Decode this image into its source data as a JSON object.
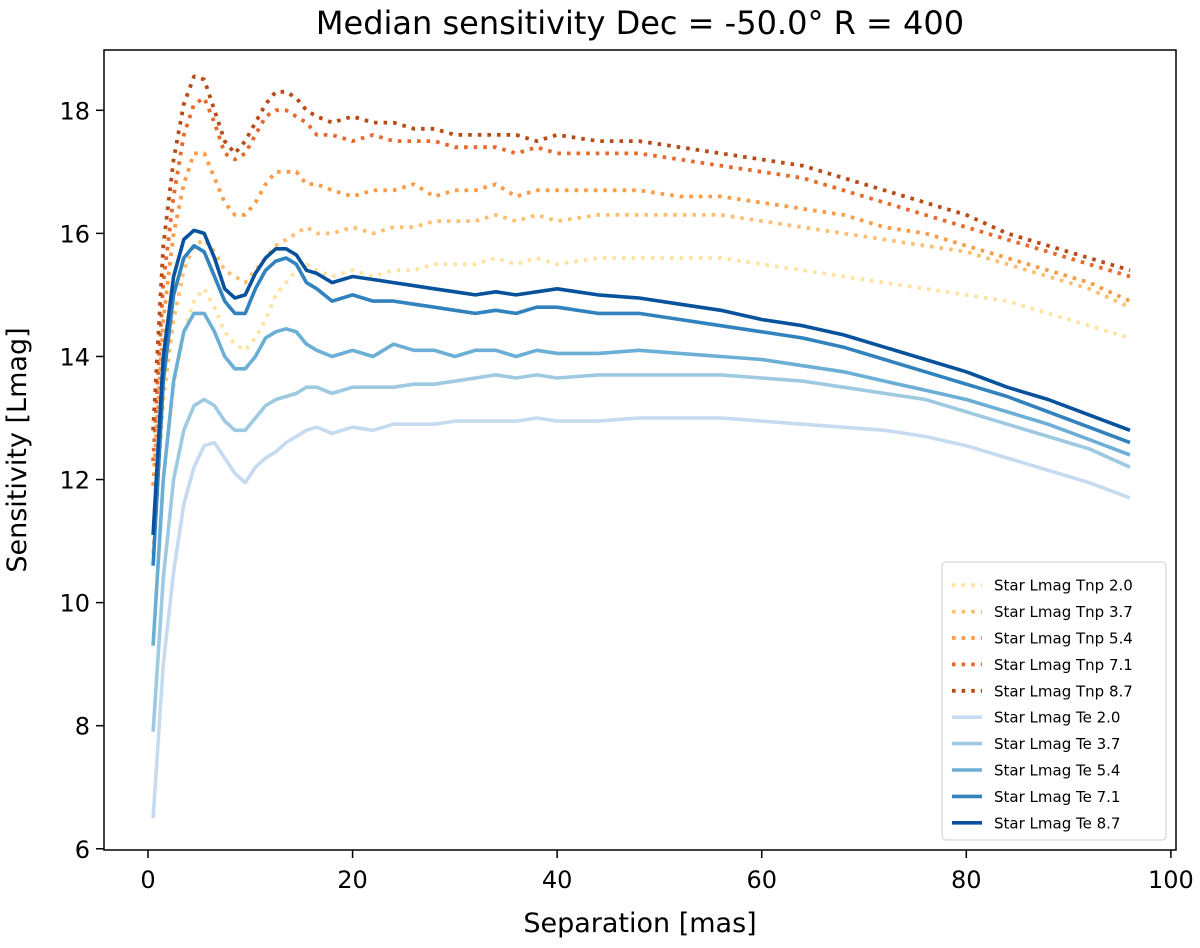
{
  "chart_data": {
    "type": "line",
    "title": "Median sensitivity Dec = -50.0° R = 400",
    "xlabel": "Separation [mas]",
    "ylabel": "Sensitivity [Lmag]",
    "xlim": [
      -4.3,
      100.5
    ],
    "ylim": [
      5.98,
      18.98
    ],
    "xticks": [
      0,
      20,
      40,
      60,
      80,
      100
    ],
    "yticks": [
      6,
      8,
      10,
      12,
      14,
      16,
      18
    ],
    "legend_position": "lower right",
    "x": [
      0.5,
      1.5,
      2.5,
      3.5,
      4.5,
      5.5,
      6.5,
      7.5,
      8.5,
      9.5,
      10.5,
      11.5,
      12.5,
      13.5,
      14.5,
      15.5,
      16.5,
      18,
      20,
      22,
      24,
      26,
      28,
      30,
      32,
      34,
      36,
      38,
      40,
      44,
      48,
      52,
      56,
      60,
      64,
      68,
      72,
      76,
      80,
      84,
      88,
      92,
      96
    ],
    "series": [
      {
        "name": "Star Lmag Tnp 2.0",
        "style": "dotted",
        "color": "#fee39f",
        "values": [
          9.3,
          12.0,
          13.5,
          14.4,
          14.9,
          15.1,
          14.8,
          14.4,
          14.2,
          14.1,
          14.3,
          14.6,
          15.0,
          15.2,
          15.4,
          15.5,
          15.4,
          15.3,
          15.4,
          15.3,
          15.4,
          15.4,
          15.5,
          15.5,
          15.5,
          15.6,
          15.5,
          15.6,
          15.5,
          15.6,
          15.6,
          15.6,
          15.6,
          15.5,
          15.4,
          15.3,
          15.2,
          15.1,
          15.0,
          14.9,
          14.7,
          14.5,
          14.3
        ]
      },
      {
        "name": "Star Lmag Tnp 3.7",
        "style": "dotted",
        "color": "#fdbf6f",
        "values": [
          10.8,
          13.3,
          14.6,
          15.4,
          15.8,
          15.9,
          15.7,
          15.4,
          15.3,
          15.2,
          15.4,
          15.6,
          15.8,
          15.9,
          16.0,
          16.1,
          16.0,
          16.0,
          16.1,
          16.0,
          16.1,
          16.1,
          16.2,
          16.2,
          16.2,
          16.3,
          16.2,
          16.3,
          16.2,
          16.3,
          16.3,
          16.3,
          16.3,
          16.2,
          16.1,
          16.0,
          15.9,
          15.8,
          15.7,
          15.5,
          15.3,
          15.1,
          14.8
        ]
      },
      {
        "name": "Star Lmag Tnp 5.4",
        "style": "dotted",
        "color": "#fd9a44",
        "values": [
          11.9,
          14.6,
          16.0,
          16.8,
          17.3,
          17.3,
          16.9,
          16.5,
          16.3,
          16.3,
          16.5,
          16.8,
          17.0,
          17.0,
          17.0,
          16.8,
          16.8,
          16.7,
          16.6,
          16.7,
          16.7,
          16.8,
          16.6,
          16.7,
          16.7,
          16.8,
          16.6,
          16.7,
          16.7,
          16.7,
          16.7,
          16.6,
          16.6,
          16.5,
          16.4,
          16.3,
          16.1,
          16.0,
          15.8,
          15.6,
          15.4,
          15.2,
          14.9
        ]
      },
      {
        "name": "Star Lmag Tnp 7.1",
        "style": "dotted",
        "color": "#e8692c",
        "values": [
          12.3,
          15.2,
          16.6,
          17.6,
          18.1,
          18.2,
          17.8,
          17.3,
          17.2,
          17.3,
          17.6,
          17.9,
          18.0,
          18.0,
          17.9,
          17.8,
          17.6,
          17.6,
          17.5,
          17.6,
          17.5,
          17.5,
          17.5,
          17.4,
          17.4,
          17.4,
          17.3,
          17.4,
          17.3,
          17.3,
          17.3,
          17.2,
          17.1,
          17.0,
          16.9,
          16.7,
          16.5,
          16.3,
          16.1,
          15.9,
          15.7,
          15.5,
          15.3
        ]
      },
      {
        "name": "Star Lmag Tnp 8.7",
        "style": "dotted",
        "color": "#b84a16",
        "values": [
          12.8,
          15.8,
          17.2,
          18.1,
          18.55,
          18.5,
          18.0,
          17.5,
          17.3,
          17.5,
          17.8,
          18.1,
          18.3,
          18.3,
          18.2,
          18.0,
          17.9,
          17.8,
          17.9,
          17.8,
          17.8,
          17.7,
          17.7,
          17.6,
          17.6,
          17.6,
          17.6,
          17.5,
          17.6,
          17.5,
          17.5,
          17.4,
          17.3,
          17.2,
          17.1,
          16.9,
          16.7,
          16.5,
          16.3,
          16.0,
          15.8,
          15.6,
          15.4
        ]
      },
      {
        "name": "Star Lmag Te 2.0",
        "style": "solid",
        "color": "#c6dbef",
        "values": [
          6.5,
          9.0,
          10.5,
          11.6,
          12.2,
          12.55,
          12.6,
          12.35,
          12.1,
          11.95,
          12.2,
          12.35,
          12.45,
          12.6,
          12.7,
          12.8,
          12.85,
          12.75,
          12.85,
          12.8,
          12.9,
          12.9,
          12.9,
          12.95,
          12.95,
          12.95,
          12.95,
          13.0,
          12.95,
          12.95,
          13.0,
          13.0,
          13.0,
          12.95,
          12.9,
          12.85,
          12.8,
          12.7,
          12.55,
          12.35,
          12.15,
          11.95,
          11.7
        ]
      },
      {
        "name": "Star Lmag Te 3.7",
        "style": "solid",
        "color": "#9ecae1",
        "values": [
          7.9,
          10.4,
          12.0,
          12.8,
          13.2,
          13.3,
          13.2,
          12.95,
          12.8,
          12.8,
          13.0,
          13.2,
          13.3,
          13.35,
          13.4,
          13.5,
          13.5,
          13.4,
          13.5,
          13.5,
          13.5,
          13.55,
          13.55,
          13.6,
          13.65,
          13.7,
          13.65,
          13.7,
          13.65,
          13.7,
          13.7,
          13.7,
          13.7,
          13.65,
          13.6,
          13.5,
          13.4,
          13.3,
          13.1,
          12.9,
          12.7,
          12.5,
          12.2
        ]
      },
      {
        "name": "Star Lmag Te 5.4",
        "style": "solid",
        "color": "#6baed6",
        "values": [
          9.3,
          12.0,
          13.6,
          14.4,
          14.7,
          14.7,
          14.4,
          14.0,
          13.8,
          13.8,
          14.0,
          14.3,
          14.4,
          14.45,
          14.4,
          14.2,
          14.1,
          14.0,
          14.1,
          14.0,
          14.2,
          14.1,
          14.1,
          14.0,
          14.1,
          14.1,
          14.0,
          14.1,
          14.05,
          14.05,
          14.1,
          14.05,
          14.0,
          13.95,
          13.85,
          13.75,
          13.6,
          13.45,
          13.3,
          13.1,
          12.9,
          12.65,
          12.4
        ]
      },
      {
        "name": "Star Lmag Te 7.1",
        "style": "solid",
        "color": "#3182bd",
        "values": [
          10.6,
          13.6,
          15.0,
          15.6,
          15.8,
          15.7,
          15.3,
          14.9,
          14.7,
          14.7,
          15.1,
          15.4,
          15.55,
          15.6,
          15.5,
          15.2,
          15.1,
          14.9,
          15.0,
          14.9,
          14.9,
          14.85,
          14.8,
          14.75,
          14.7,
          14.75,
          14.7,
          14.8,
          14.8,
          14.7,
          14.7,
          14.6,
          14.5,
          14.4,
          14.3,
          14.15,
          13.95,
          13.75,
          13.55,
          13.35,
          13.1,
          12.85,
          12.6
        ]
      },
      {
        "name": "Star Lmag Te 8.7",
        "style": "solid",
        "color": "#08519c",
        "values": [
          11.1,
          14.0,
          15.3,
          15.9,
          16.05,
          16.0,
          15.6,
          15.1,
          14.95,
          15.0,
          15.35,
          15.6,
          15.75,
          15.75,
          15.65,
          15.4,
          15.35,
          15.2,
          15.3,
          15.25,
          15.2,
          15.15,
          15.1,
          15.05,
          15.0,
          15.05,
          15.0,
          15.05,
          15.1,
          15.0,
          14.95,
          14.85,
          14.75,
          14.6,
          14.5,
          14.35,
          14.15,
          13.95,
          13.75,
          13.5,
          13.3,
          13.05,
          12.8
        ]
      }
    ]
  }
}
